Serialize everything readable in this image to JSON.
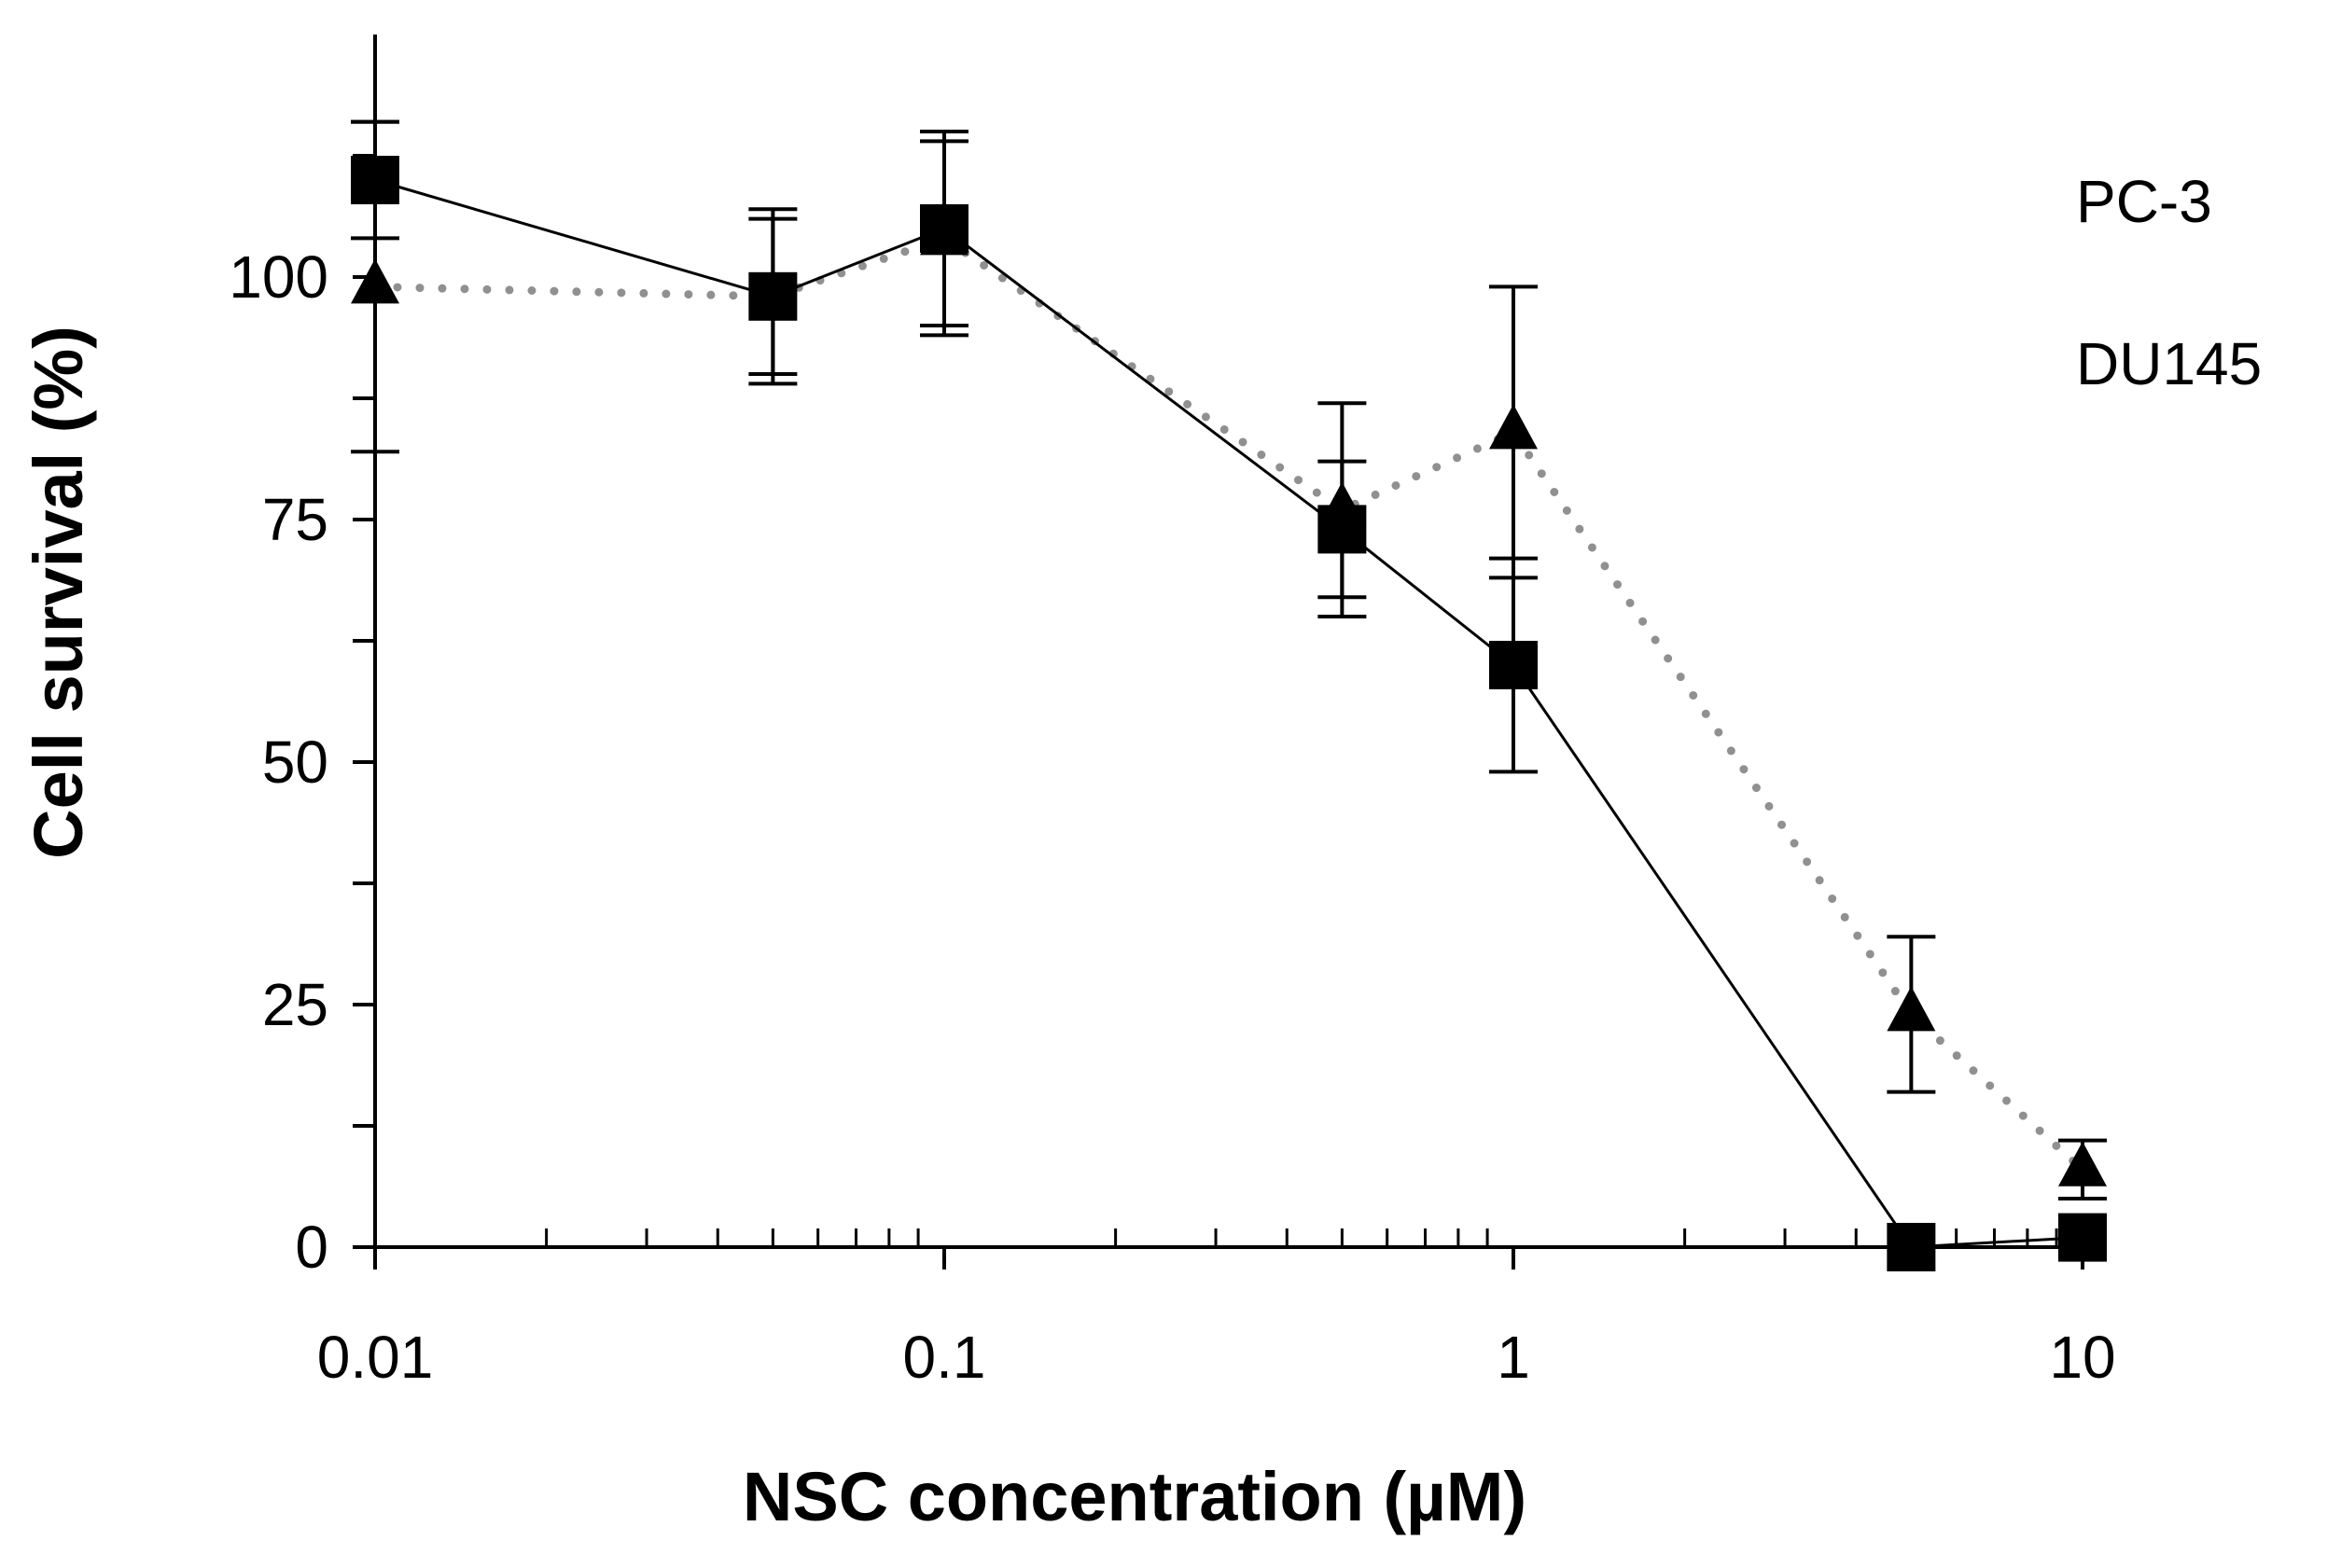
{
  "chart_data": {
    "type": "line",
    "title": "",
    "xlabel": "NSC concentration (µM)",
    "ylabel": "Cell survival (%)",
    "xscale": "log",
    "xlim": [
      0.01,
      10
    ],
    "ylim": [
      0,
      125
    ],
    "xticks": [
      0.01,
      0.1,
      1,
      10
    ],
    "xtick_labels": [
      "0.01",
      "0.1",
      "1",
      "10"
    ],
    "yticks": [
      0,
      25,
      50,
      75,
      100
    ],
    "ytick_labels": [
      "0",
      "25",
      "50",
      "75",
      "100"
    ],
    "x": [
      0.01,
      0.05,
      0.1,
      0.5,
      1,
      5,
      10
    ],
    "legend": [
      "PC-3",
      "DU145"
    ],
    "legend_position": "top-right",
    "series": [
      {
        "name": "PC-3",
        "marker": "square",
        "line": "solid",
        "color": "#000000",
        "values": [
          110,
          98,
          105,
          74,
          60,
          0,
          1
        ],
        "errors": [
          6,
          9,
          10,
          7,
          11,
          0,
          0
        ]
      },
      {
        "name": "DU145",
        "marker": "triangle",
        "line": "dotted",
        "color": "#909090",
        "values": [
          99,
          98,
          104,
          76,
          84,
          24,
          8
        ],
        "errors": [
          17,
          8,
          10,
          11,
          15,
          8,
          3
        ]
      }
    ]
  }
}
